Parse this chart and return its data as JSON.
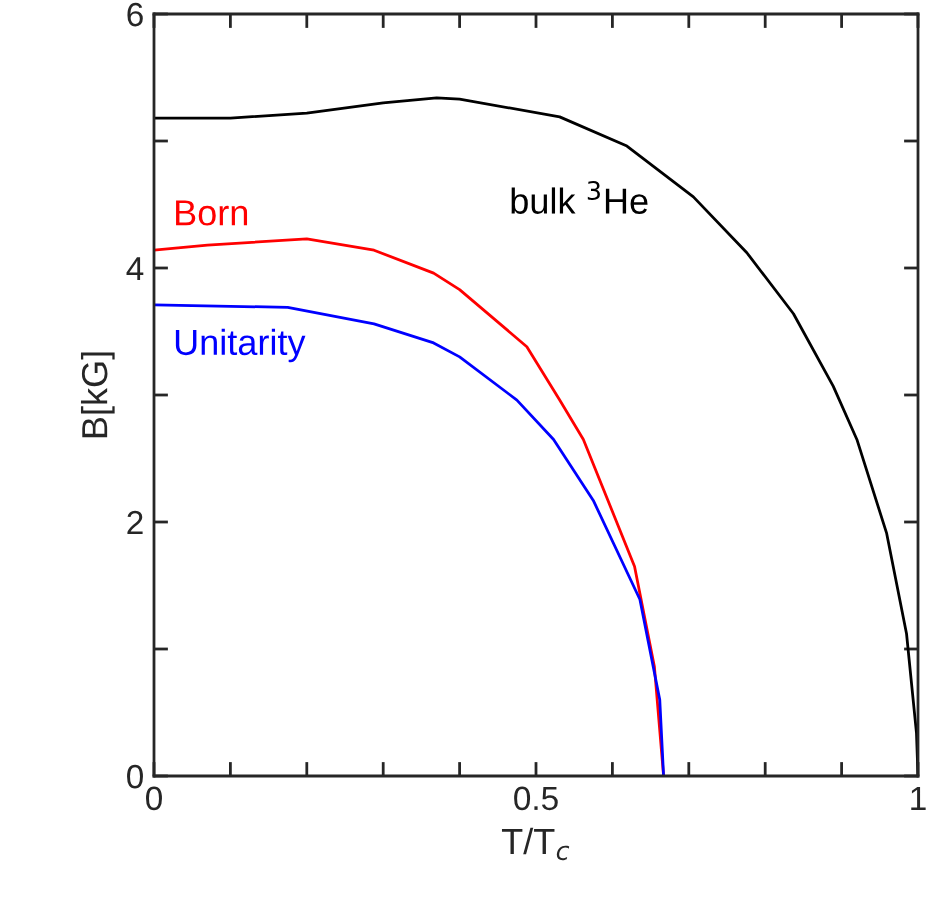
{
  "chart_data": {
    "type": "line",
    "xlabel": "T/T$_{c}$",
    "ylabel": "B[kG]",
    "xlim": [
      0,
      1
    ],
    "ylim": [
      0,
      6
    ],
    "xticks": [
      0,
      {
        "value": 0.1,
        "label": null
      },
      {
        "value": 0.2,
        "label": null
      },
      {
        "value": 0.3,
        "label": null
      },
      {
        "value": 0.4,
        "label": null
      },
      0.5,
      {
        "value": 0.6,
        "label": null
      },
      {
        "value": 0.7,
        "label": null
      },
      {
        "value": 0.8,
        "label": null
      },
      {
        "value": 0.9,
        "label": null
      },
      1
    ],
    "yticks": [
      0,
      {
        "value": 1,
        "label": null
      },
      2,
      {
        "value": 3,
        "label": null
      },
      4,
      {
        "value": 5,
        "label": null
      },
      6
    ],
    "grid": false,
    "legend": false,
    "line_style": "solid",
    "marker": "none",
    "series": [
      {
        "name": "bulk $^{3}$He",
        "color": "#000000",
        "x": [
          0,
          0.1,
          0.2,
          0.3,
          0.37,
          0.4,
          0.531,
          0.619,
          0.706,
          0.776,
          0.837,
          0.889,
          0.92,
          0.959,
          0.985,
          0.998,
          1
        ],
        "values": [
          5.18,
          5.18,
          5.22,
          5.3,
          5.34,
          5.33,
          5.19,
          4.96,
          4.56,
          4.12,
          3.64,
          3.07,
          2.65,
          1.91,
          1.12,
          0.34,
          0
        ]
      },
      {
        "name": "Born",
        "color": "#ff0000",
        "x": [
          0,
          0.07,
          0.2,
          0.288,
          0.366,
          0.4,
          0.488,
          0.531,
          0.562,
          0.629,
          0.655,
          0.667
        ],
        "values": [
          4.14,
          4.18,
          4.23,
          4.14,
          3.96,
          3.83,
          3.38,
          2.96,
          2.65,
          1.65,
          0.86,
          0
        ]
      },
      {
        "name": "Unitarity",
        "color": "#0000ff",
        "x": [
          0,
          0.175,
          0.288,
          0.366,
          0.4,
          0.475,
          0.523,
          0.575,
          0.636,
          0.662,
          0.667
        ],
        "values": [
          3.71,
          3.69,
          3.56,
          3.41,
          3.3,
          2.96,
          2.65,
          2.17,
          1.39,
          0.6,
          0
        ]
      }
    ]
  }
}
